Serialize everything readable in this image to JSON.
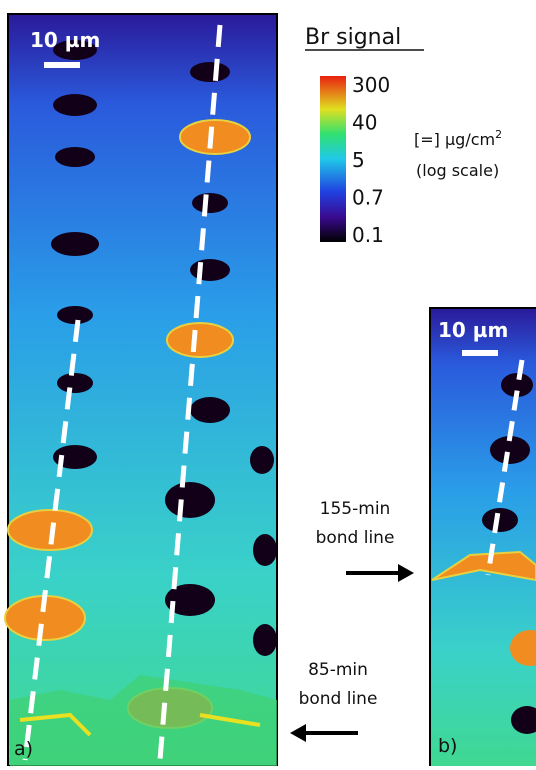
{
  "colorbar": {
    "title": "Br signal",
    "ticks": [
      "300",
      "40",
      "5",
      "0.7",
      "0.1"
    ],
    "units": {
      "text": "[=] µg/cm",
      "sup": "2"
    },
    "scale_note": "(log scale)"
  },
  "panels": [
    {
      "label": "a)",
      "scale_bar": "10 µm"
    },
    {
      "label": "b)",
      "scale_bar": "10 µm"
    }
  ],
  "annotations": [
    {
      "lines": [
        "155-min",
        "bond line"
      ]
    },
    {
      "lines": [
        "85-min",
        "bond line"
      ]
    }
  ]
}
